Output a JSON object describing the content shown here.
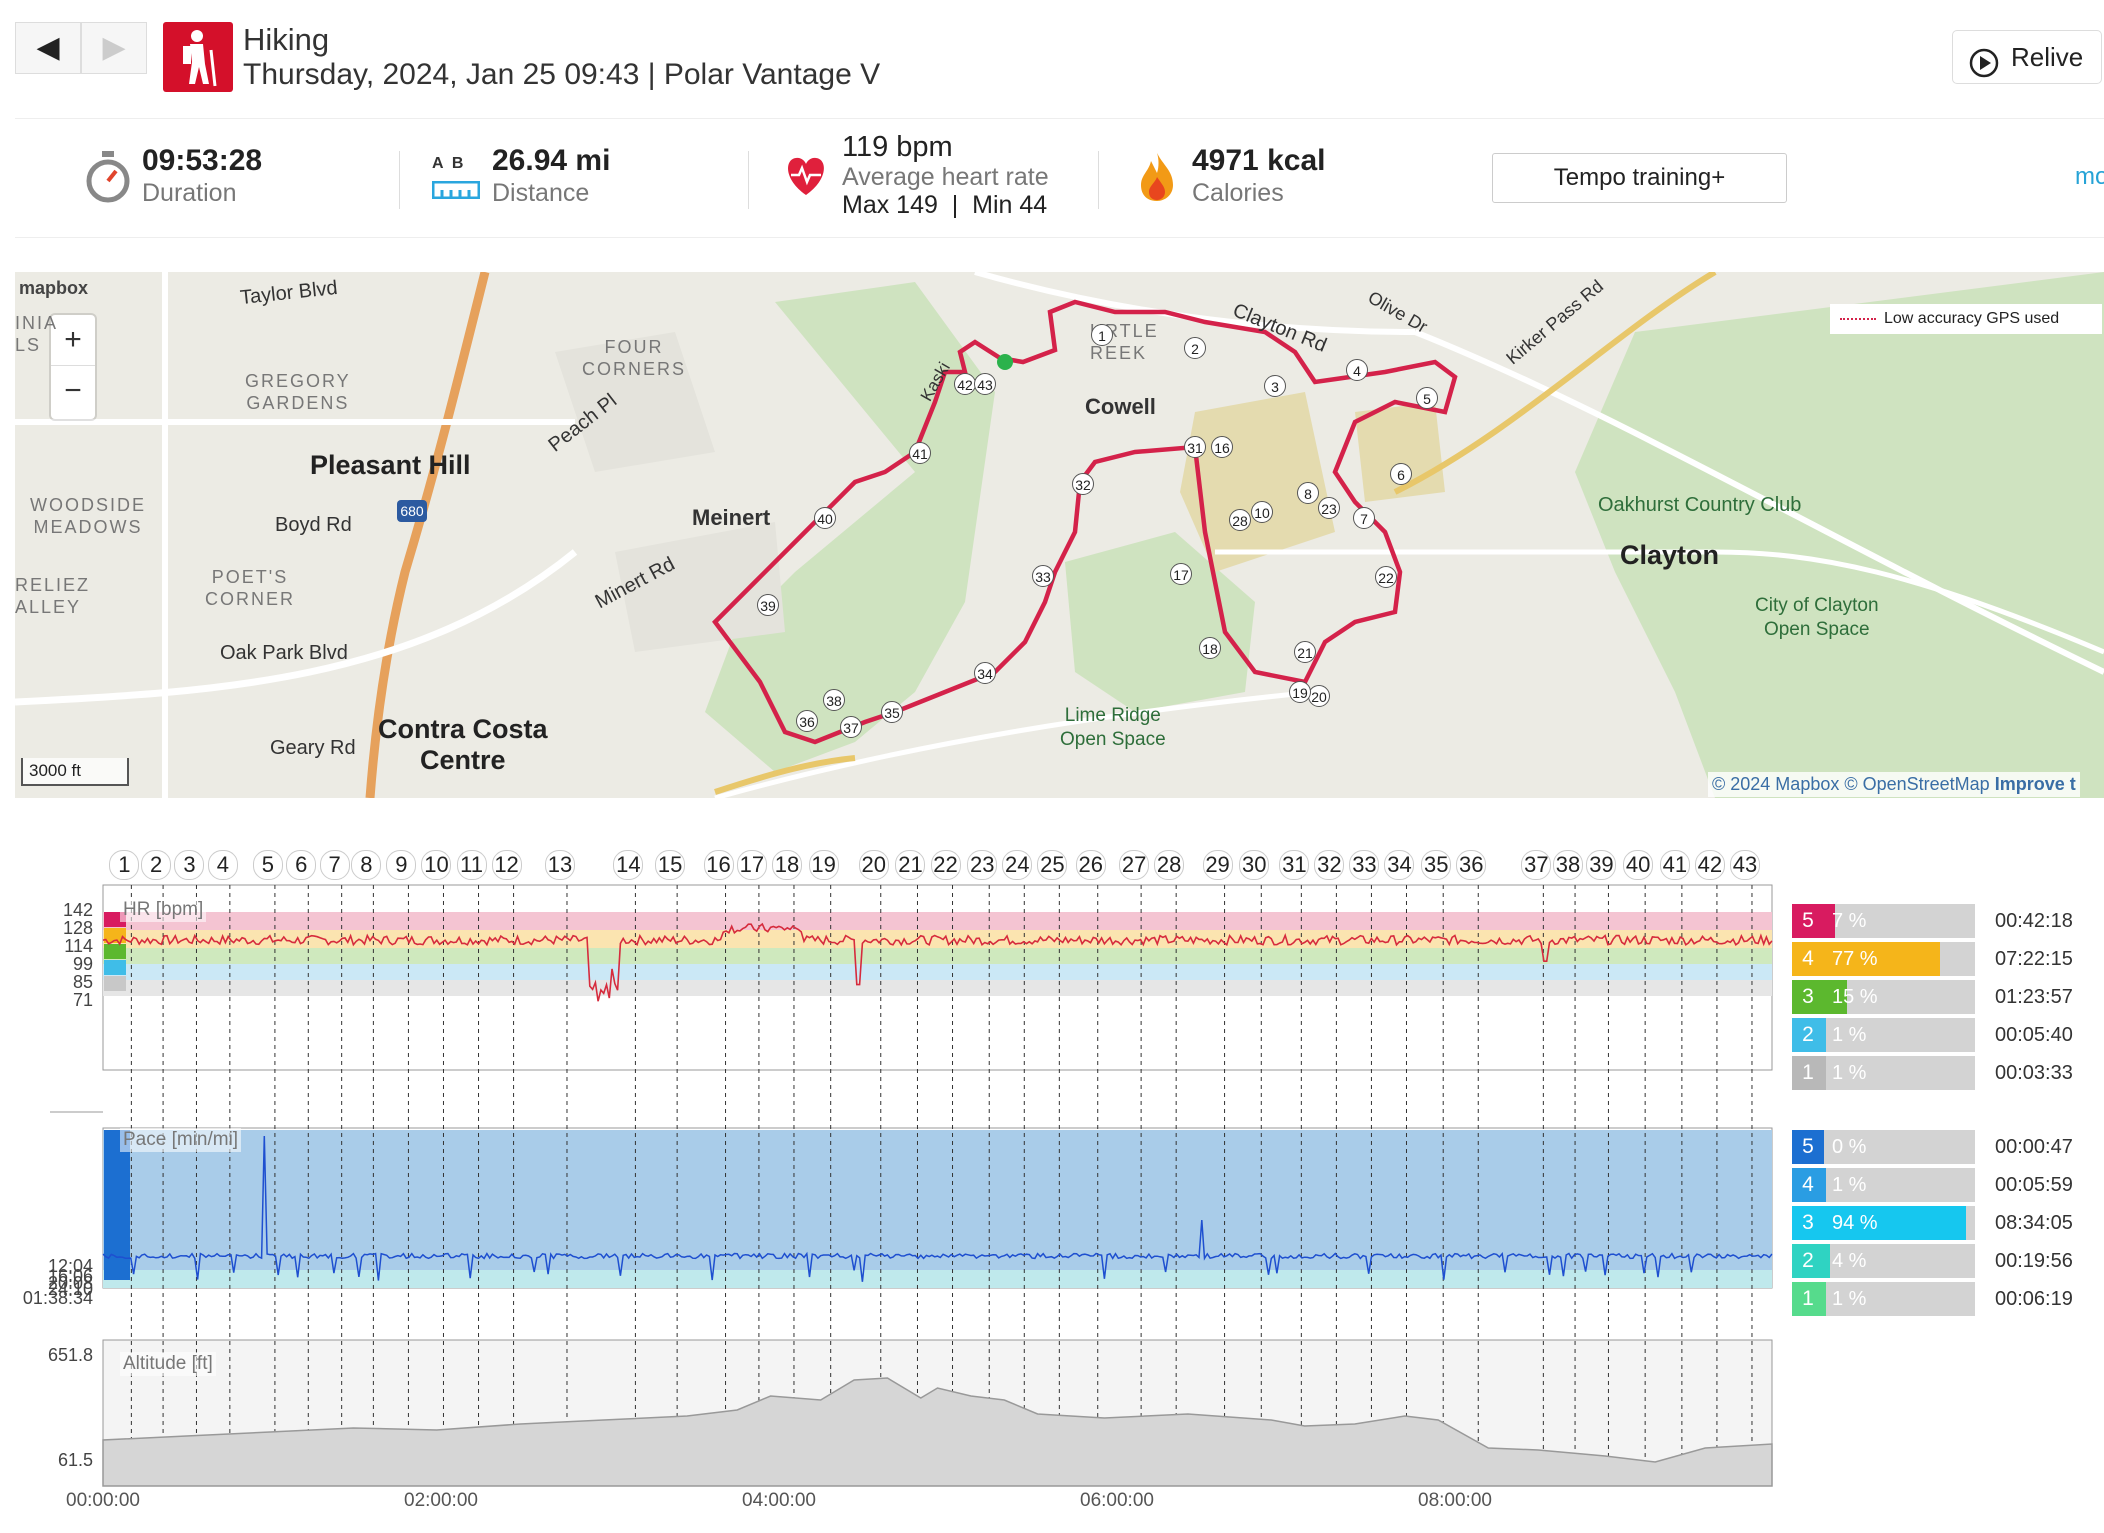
{
  "header": {
    "back": "◀",
    "forward": "▶",
    "sport": "Hiking",
    "subtitle": "Thursday, 2024, Jan 25 09:43 | Polar Vantage V",
    "relive": "Relive"
  },
  "summary": {
    "duration_value": "09:53:28",
    "duration_label": "Duration",
    "distance_ab": "A  B",
    "distance_value": "26.94 mi",
    "distance_label": "Distance",
    "hr_value": "119 bpm",
    "hr_label": "Average heart rate",
    "hr_maxmin": "Max 149  |  Min 44",
    "cal_value": "4971 kcal",
    "cal_label": "Calories",
    "tempo_button": "Tempo training+",
    "more_link": "mo"
  },
  "map": {
    "logo": "mapbox",
    "zoom_in": "+",
    "zoom_out": "−",
    "scale": "3000 ft",
    "gps_legend": "Low accuracy GPS used",
    "attribution": "© 2024 Mapbox © OpenStreetMap",
    "improve": "Improve t",
    "labels": {
      "taylor": "Taylor Blvd",
      "gregory": "GREGORY\nGARDENS",
      "four_corners": "FOUR\nCORNERS",
      "pleasant_hill": "Pleasant Hill",
      "woodside": "WOODSIDE\nMEADOWS",
      "boyd": "Boyd Rd",
      "poets": "POET'S\nCORNER",
      "reliez": "RELIEZ\nALLEY",
      "inia": "INIA\nLS",
      "oak_park": "Oak Park Blvd",
      "geary": "Geary Rd",
      "contra_costa": "Contra Costa\nCentre",
      "meinert": "Meinert",
      "minert_rd": "Minert Rd",
      "peach": "Peach Pl",
      "kaski": "Kaski",
      "cowell": "Cowell",
      "turtle_creek": "URTLE\nREEK",
      "clayton_rd": "Clayton Rd",
      "olive": "Olive Dr",
      "kirker": "Kirker Pass Rd",
      "oakhurst": "Oakhurst Country Club",
      "clayton": "Clayton",
      "city_clayton": "City of Clayton\nOpen Space",
      "lime_ridge": "Lime Ridge\nOpen Space",
      "i680": "680"
    },
    "markers": [
      "1",
      "2",
      "3",
      "4",
      "5",
      "6",
      "7",
      "8",
      "23",
      "22",
      "21",
      "20",
      "19",
      "18",
      "17",
      "31",
      "16",
      "10",
      "28",
      "32",
      "33",
      "34",
      "35",
      "36",
      "37",
      "38",
      "39",
      "40",
      "41",
      "42",
      "43"
    ]
  },
  "laps": [
    "1",
    "2",
    "3",
    "4",
    "5",
    "6",
    "7",
    "8",
    "9",
    "10",
    "11",
    "12",
    "13",
    "14",
    "15",
    "16",
    "17",
    "18",
    "19",
    "20",
    "21",
    "22",
    "23",
    "24",
    "25",
    "26",
    "27",
    "28",
    "29",
    "30",
    "31",
    "32",
    "33",
    "34",
    "35",
    "36",
    "37",
    "38",
    "39",
    "40",
    "41",
    "42",
    "43"
  ],
  "hr_panel": {
    "title": "HR [bpm]",
    "yticks": [
      "142",
      "128",
      "114",
      "99",
      "85",
      "71"
    ],
    "zones": [
      {
        "zone": "5",
        "pct": "7 %",
        "pct_value": 7,
        "time": "00:42:18",
        "color": "#d81b60"
      },
      {
        "zone": "4",
        "pct": "77 %",
        "pct_value": 77,
        "time": "07:22:15",
        "color": "#f5b51a"
      },
      {
        "zone": "3",
        "pct": "15 %",
        "pct_value": 15,
        "time": "01:23:57",
        "color": "#5cb82e"
      },
      {
        "zone": "2",
        "pct": "1 %",
        "pct_value": 1,
        "time": "00:05:40",
        "color": "#3fbde8"
      },
      {
        "zone": "1",
        "pct": "1 %",
        "pct_value": 1,
        "time": "00:03:33",
        "color": "#b8b8b8"
      }
    ]
  },
  "pace_panel": {
    "title": "Pace [min/mi]",
    "yticks": [
      "12:04",
      "16:06",
      "20:08",
      "24:10",
      "01:38:34"
    ],
    "zones": [
      {
        "zone": "5",
        "pct": "0 %",
        "pct_value": 0,
        "time": "00:00:47",
        "color": "#1c6fd1"
      },
      {
        "zone": "4",
        "pct": "1 %",
        "pct_value": 1,
        "time": "00:05:59",
        "color": "#2a9de3"
      },
      {
        "zone": "3",
        "pct": "94 %",
        "pct_value": 94,
        "time": "08:34:05",
        "color": "#16c7ef"
      },
      {
        "zone": "2",
        "pct": "4 %",
        "pct_value": 4,
        "time": "00:19:56",
        "color": "#2fd3c2"
      },
      {
        "zone": "1",
        "pct": "1 %",
        "pct_value": 1,
        "time": "00:06:19",
        "color": "#56db8c"
      }
    ]
  },
  "alt_panel": {
    "title": "Altitude [ft]",
    "ymax": "651.8",
    "ymin": "61.5"
  },
  "xaxis": [
    "00:00:00",
    "02:00:00",
    "04:00:00",
    "06:00:00",
    "08:00:00"
  ],
  "colors": {
    "route": "#d4224a",
    "hr_line": "#d62b3d",
    "pace_line": "#1e4fd0",
    "pace_fill": "#a9cce9",
    "alt_fill": "#d6d6d6"
  }
}
